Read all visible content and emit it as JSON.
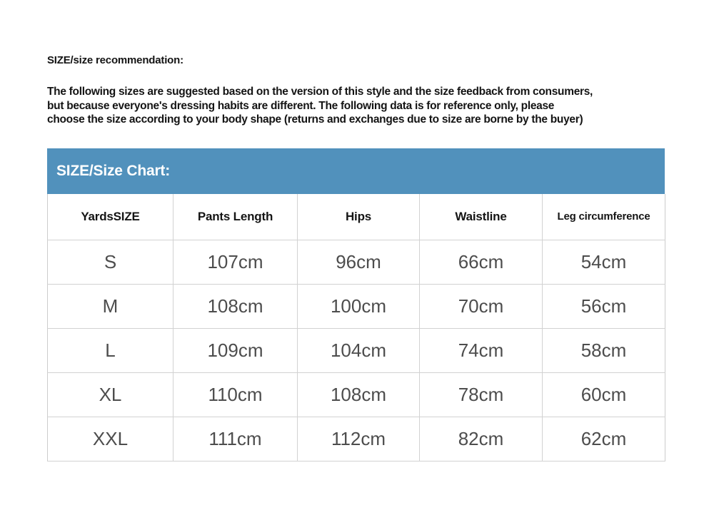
{
  "recommendation": {
    "title": "SIZE/size recommendation:",
    "body_lines": [
      "The following sizes are suggested based on the version of this style and the size feedback from consumers,",
      "but because everyone's dressing habits are different. The following data is for reference only, please",
      "choose the size according to your body shape (returns and exchanges due to size are borne by the buyer)"
    ]
  },
  "size_chart": {
    "banner_title": "SIZE/Size Chart:",
    "banner_color": "#5191bc",
    "columns": [
      "YardsSIZE",
      "Pants Length",
      "Hips",
      "Waistline",
      "Leg circumference"
    ],
    "rows": [
      {
        "size": "S",
        "values": [
          "107cm",
          "96cm",
          "66cm",
          "54cm"
        ]
      },
      {
        "size": "M",
        "values": [
          "108cm",
          "100cm",
          "70cm",
          "56cm"
        ]
      },
      {
        "size": "L",
        "values": [
          "109cm",
          "104cm",
          "74cm",
          "58cm"
        ]
      },
      {
        "size": "XL",
        "values": [
          "110cm",
          "108cm",
          "78cm",
          "60cm"
        ]
      },
      {
        "size": "XXL",
        "values": [
          "111cm",
          "112cm",
          "82cm",
          "62cm"
        ]
      }
    ]
  }
}
